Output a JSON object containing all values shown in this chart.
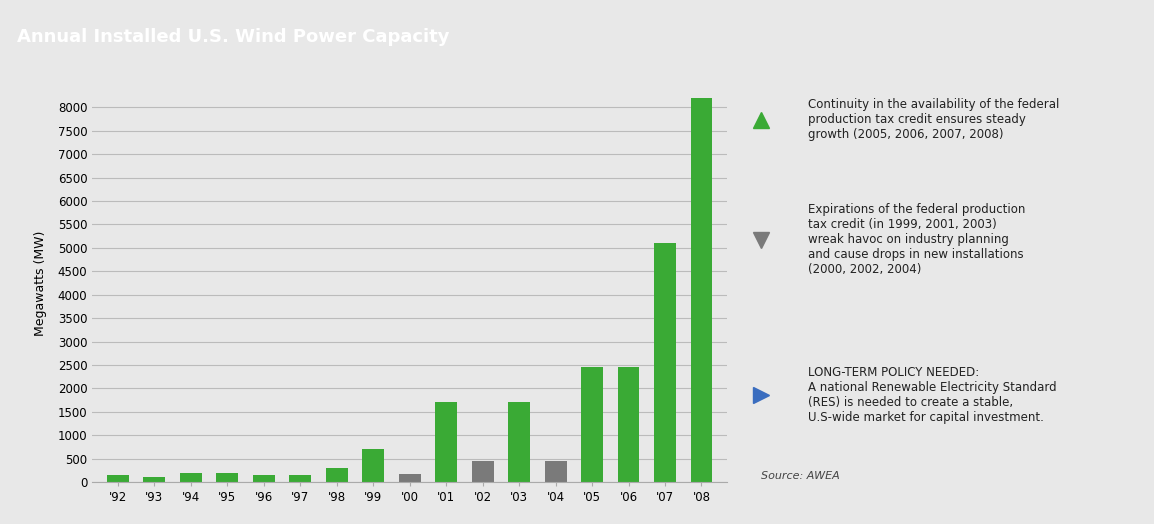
{
  "title": "Annual Installed U.S. Wind Power Capacity",
  "title_bg_color": "#808080",
  "title_text_color": "#ffffff",
  "bg_color": "#e8e8e8",
  "plot_bg_color": "#e8e8e8",
  "ylabel": "Megawatts (MW)",
  "years": [
    "'92",
    "'93",
    "'94",
    "'95",
    "'96",
    "'97",
    "'98",
    "'99",
    "'00",
    "'01",
    "'02",
    "'03",
    "'04",
    "'05",
    "'06",
    "'07",
    "'08"
  ],
  "values": [
    160,
    110,
    185,
    185,
    155,
    155,
    310,
    710,
    170,
    1700,
    450,
    1700,
    450,
    2450,
    2450,
    5100,
    8200
  ],
  "bar_colors": [
    "#3aaa35",
    "#3aaa35",
    "#3aaa35",
    "#3aaa35",
    "#3aaa35",
    "#3aaa35",
    "#3aaa35",
    "#3aaa35",
    "#7a7a7a",
    "#3aaa35",
    "#7a7a7a",
    "#3aaa35",
    "#7a7a7a",
    "#3aaa35",
    "#3aaa35",
    "#3aaa35",
    "#3aaa35"
  ],
  "yticks": [
    0,
    500,
    1000,
    1500,
    2000,
    2500,
    3000,
    3500,
    4000,
    4500,
    5000,
    5500,
    6000,
    6500,
    7000,
    7500,
    8000
  ],
  "ylim": [
    0,
    8500
  ],
  "grid_color": "#bbbbbb",
  "legend_green_text": "Continuity in the availability of the federal\nproduction tax credit ensures steady\ngrowth (2005, 2006, 2007, 2008)",
  "legend_gray_text": "Expirations of the federal production\ntax credit (in 1999, 2001, 2003)\nwreak havoc on industry planning\nand cause drops in new installations\n(2000, 2002, 2004)",
  "legend_blue_text": "LONG-TERM POLICY NEEDED:\nA national Renewable Electricity Standard\n(RES) is needed to create a stable,\nU.S-wide market for capital investment.",
  "source_text": "Source: AWEA",
  "green_color": "#3aaa35",
  "gray_color": "#7a7a7a",
  "blue_color": "#3a6dbf"
}
